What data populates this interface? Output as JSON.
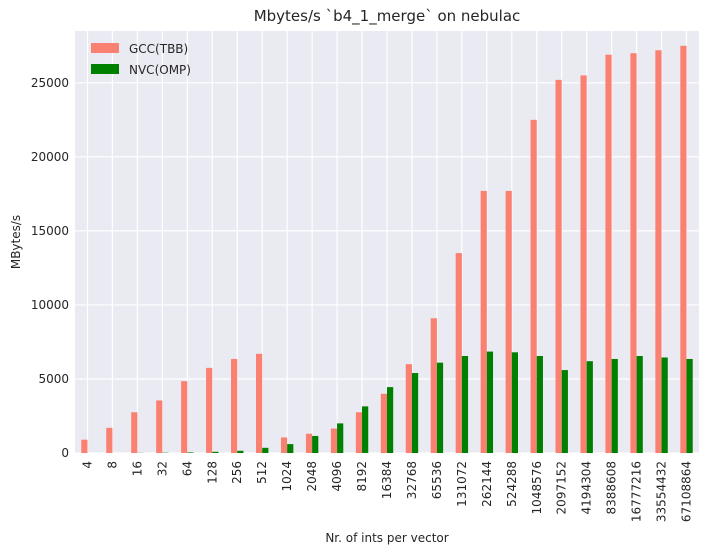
{
  "chart_data": {
    "type": "bar",
    "title": "Mbytes/s `b4_1_merge` on nebulac",
    "xlabel": "Nr. of ints per vector",
    "ylabel": "MBytes/s",
    "ylim": [
      0,
      28500
    ],
    "yticks": [
      0,
      5000,
      10000,
      15000,
      20000,
      25000
    ],
    "grid": true,
    "legend_position": "top-left",
    "categories": [
      "4",
      "8",
      "16",
      "32",
      "64",
      "128",
      "256",
      "512",
      "1024",
      "2048",
      "4096",
      "8192",
      "16384",
      "32768",
      "65536",
      "131072",
      "262144",
      "524288",
      "1048576",
      "2097152",
      "4194304",
      "8388608",
      "16777216",
      "33554432",
      "67108864"
    ],
    "series": [
      {
        "name": "GCC(TBB)",
        "color": "#fa8072",
        "values": [
          900,
          1700,
          2750,
          3550,
          4850,
          5750,
          6350,
          6700,
          1050,
          1300,
          1650,
          2750,
          4000,
          6000,
          9100,
          13500,
          17700,
          17700,
          22500,
          25200,
          25500,
          26900,
          27000,
          27200,
          27500
        ]
      },
      {
        "name": "NVC(OMP)",
        "color": "#008000",
        "values": [
          0,
          0,
          10,
          20,
          40,
          80,
          150,
          350,
          600,
          1150,
          2000,
          3150,
          4450,
          5400,
          6100,
          6550,
          6850,
          6800,
          6550,
          5600,
          6200,
          6350,
          6550,
          6450,
          6350
        ]
      }
    ]
  }
}
